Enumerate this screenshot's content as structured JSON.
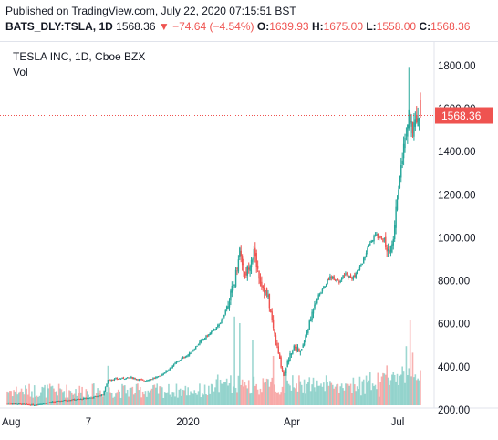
{
  "header": {
    "published": "Published on TradingView.com, July 22, 2020 07:15:51 BST",
    "symbol": "BATS_DLY:TSLA, 1D",
    "last": "1568.36",
    "arrow": "▼",
    "change": "−74.64 (−4.54%)",
    "o_label": "O:",
    "o_value": "1639.93",
    "h_label": "H:",
    "h_value": "1675.00",
    "l_label": "L:",
    "l_value": "1558.00",
    "c_label": "C:",
    "c_value": "1568.36"
  },
  "chart_data": {
    "type": "candlestick",
    "title": "TESLA INC, 1D, Cboe BZX",
    "volume_label": "Vol",
    "last_price_label": "1568.36",
    "last_price": 1568.36,
    "y_ticks": [
      "200.00",
      "400.00",
      "600.00",
      "800.00",
      "1000.00",
      "1200.00",
      "1400.00",
      "1600.00",
      "1800.00"
    ],
    "x_ticks": [
      "Aug",
      "7",
      "2020",
      "Apr",
      "Jul"
    ],
    "ylim": [
      60,
      1910
    ],
    "colors": {
      "up": "#26a69a",
      "down": "#ef5350",
      "last_line": "#ef5350"
    },
    "price_path": [
      [
        0,
        232
      ],
      [
        20,
        222
      ],
      [
        33,
        235
      ],
      [
        45,
        245
      ],
      [
        57,
        250
      ],
      [
        66,
        258
      ],
      [
        74,
        270
      ],
      [
        78,
        340
      ],
      [
        96,
        350
      ],
      [
        106,
        335
      ],
      [
        118,
        355
      ],
      [
        133,
        430
      ],
      [
        141,
        460
      ],
      [
        150,
        520
      ],
      [
        158,
        560
      ],
      [
        165,
        600
      ],
      [
        170,
        680
      ],
      [
        176,
        800
      ],
      [
        180,
        950
      ],
      [
        184,
        820
      ],
      [
        188,
        890
      ],
      [
        191,
        930
      ],
      [
        196,
        800
      ],
      [
        202,
        720
      ],
      [
        206,
        580
      ],
      [
        211,
        430
      ],
      [
        214,
        360
      ],
      [
        218,
        440
      ],
      [
        222,
        500
      ],
      [
        227,
        470
      ],
      [
        230,
        520
      ],
      [
        234,
        600
      ],
      [
        238,
        700
      ],
      [
        244,
        760
      ],
      [
        250,
        820
      ],
      [
        257,
        800
      ],
      [
        262,
        830
      ],
      [
        267,
        810
      ],
      [
        272,
        850
      ],
      [
        276,
        900
      ],
      [
        280,
        960
      ],
      [
        285,
        1010
      ],
      [
        291,
        1000
      ],
      [
        295,
        930
      ],
      [
        299,
        1000
      ],
      [
        302,
        1200
      ],
      [
        305,
        1350
      ],
      [
        309,
        1480
      ],
      [
        311,
        1600
      ],
      [
        314,
        1500
      ],
      [
        317,
        1560
      ],
      [
        320,
        1568
      ]
    ],
    "volume_spikes": [
      [
        78,
        120
      ],
      [
        176,
        270
      ],
      [
        180,
        250
      ],
      [
        190,
        200
      ],
      [
        206,
        150
      ],
      [
        309,
        180
      ],
      [
        312,
        260
      ],
      [
        314,
        160
      ]
    ]
  }
}
